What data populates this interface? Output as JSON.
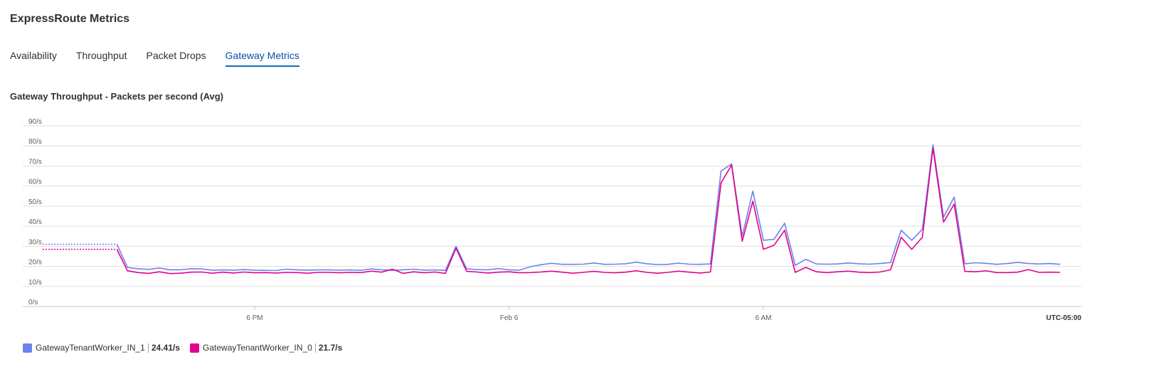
{
  "page": {
    "title": "ExpressRoute Metrics"
  },
  "tabs": [
    {
      "label": "Availability",
      "active": false
    },
    {
      "label": "Throughput",
      "active": false
    },
    {
      "label": "Packet Drops",
      "active": false
    },
    {
      "label": "Gateway Metrics",
      "active": true
    }
  ],
  "chart_title": "Gateway Throughput - Packets per second (Avg)",
  "timezone": "UTC-05:00",
  "legend": [
    {
      "name": "GatewayTenantWorker_IN_1",
      "value": "24.41/s",
      "color": "#6b83ec"
    },
    {
      "name": "GatewayTenantWorker_IN_0",
      "value": "21.7/s",
      "color": "#e3008c"
    }
  ],
  "chart_data": {
    "type": "line",
    "title": "Gateway Throughput - Packets per second (Avg)",
    "y_unit": "/s",
    "ylim": [
      0,
      90
    ],
    "yticks": [
      "0/s",
      "10/s",
      "20/s",
      "30/s",
      "40/s",
      "50/s",
      "60/s",
      "70/s",
      "80/s",
      "90/s"
    ],
    "x_range_hours": [
      13.0,
      37.5
    ],
    "xticks": [
      {
        "label": "6 PM",
        "hour": 18
      },
      {
        "label": "Feb 6",
        "hour": 24
      },
      {
        "label": "6 AM",
        "hour": 30
      }
    ],
    "grid": true,
    "legend_position": "bottom-left",
    "dotted_until_hour": 14.75,
    "series": [
      {
        "name": "GatewayTenantWorker_IN_1",
        "color": "#6b83ec",
        "points": [
          [
            13.0,
            31
          ],
          [
            14.75,
            31
          ],
          [
            15.0,
            19.5
          ],
          [
            15.25,
            18.8
          ],
          [
            15.5,
            18.5
          ],
          [
            15.75,
            19.2
          ],
          [
            16.0,
            18.3
          ],
          [
            16.25,
            18.3
          ],
          [
            16.5,
            18.8
          ],
          [
            16.75,
            18.7
          ],
          [
            17.0,
            18.1
          ],
          [
            17.25,
            18.2
          ],
          [
            17.5,
            18.1
          ],
          [
            17.75,
            18.4
          ],
          [
            18.0,
            18.1
          ],
          [
            18.25,
            18.0
          ],
          [
            18.5,
            17.9
          ],
          [
            18.75,
            18.6
          ],
          [
            19.0,
            18.2
          ],
          [
            19.25,
            18.1
          ],
          [
            19.5,
            18.2
          ],
          [
            19.75,
            18.3
          ],
          [
            20.0,
            18.1
          ],
          [
            20.25,
            18.2
          ],
          [
            20.5,
            18.0
          ],
          [
            20.75,
            18.7
          ],
          [
            21.0,
            18.3
          ],
          [
            21.25,
            18.0
          ],
          [
            21.5,
            18.3
          ],
          [
            21.75,
            18.6
          ],
          [
            22.0,
            18.1
          ],
          [
            22.25,
            18.2
          ],
          [
            22.5,
            18.0
          ],
          [
            22.75,
            30.0
          ],
          [
            23.0,
            18.8
          ],
          [
            23.25,
            18.4
          ],
          [
            23.5,
            18.3
          ],
          [
            23.75,
            18.9
          ],
          [
            24.0,
            18.3
          ],
          [
            24.25,
            18.1
          ],
          [
            24.5,
            19.8
          ],
          [
            24.75,
            20.8
          ],
          [
            25.0,
            21.5
          ],
          [
            25.25,
            21.0
          ],
          [
            25.5,
            21.0
          ],
          [
            25.75,
            21.1
          ],
          [
            26.0,
            21.7
          ],
          [
            26.25,
            21.0
          ],
          [
            26.5,
            21.1
          ],
          [
            26.75,
            21.3
          ],
          [
            27.0,
            22.1
          ],
          [
            27.25,
            21.3
          ],
          [
            27.5,
            20.9
          ],
          [
            27.75,
            21.0
          ],
          [
            28.0,
            21.6
          ],
          [
            28.25,
            21.1
          ],
          [
            28.5,
            21.0
          ],
          [
            28.75,
            21.2
          ],
          [
            29.0,
            67.5
          ],
          [
            29.25,
            71.0
          ],
          [
            29.5,
            35.0
          ],
          [
            29.75,
            57.5
          ],
          [
            30.0,
            33.0
          ],
          [
            30.25,
            33.5
          ],
          [
            30.5,
            41.5
          ],
          [
            30.75,
            20.5
          ],
          [
            31.0,
            23.5
          ],
          [
            31.25,
            21.2
          ],
          [
            31.5,
            21.1
          ],
          [
            31.75,
            21.2
          ],
          [
            32.0,
            21.7
          ],
          [
            32.25,
            21.3
          ],
          [
            32.5,
            21.1
          ],
          [
            32.75,
            21.4
          ],
          [
            33.0,
            21.9
          ],
          [
            33.25,
            38.0
          ],
          [
            33.5,
            33.0
          ],
          [
            33.75,
            38.5
          ],
          [
            34.0,
            80.5
          ],
          [
            34.25,
            44.5
          ],
          [
            34.5,
            54.5
          ],
          [
            34.75,
            21.3
          ],
          [
            35.0,
            21.8
          ],
          [
            35.25,
            21.5
          ],
          [
            35.5,
            21.0
          ],
          [
            35.75,
            21.4
          ],
          [
            36.0,
            22.0
          ],
          [
            36.25,
            21.4
          ],
          [
            36.5,
            21.2
          ],
          [
            36.75,
            21.4
          ],
          [
            37.0,
            21.0
          ]
        ]
      },
      {
        "name": "GatewayTenantWorker_IN_0",
        "color": "#e3008c",
        "points": [
          [
            13.0,
            28.5
          ],
          [
            14.75,
            28.5
          ],
          [
            15.0,
            17.8
          ],
          [
            15.25,
            16.9
          ],
          [
            15.5,
            16.5
          ],
          [
            15.75,
            17.3
          ],
          [
            16.0,
            16.4
          ],
          [
            16.25,
            16.6
          ],
          [
            16.5,
            17.1
          ],
          [
            16.75,
            17.2
          ],
          [
            17.0,
            16.6
          ],
          [
            17.25,
            17.1
          ],
          [
            17.5,
            16.7
          ],
          [
            17.75,
            17.2
          ],
          [
            18.0,
            16.8
          ],
          [
            18.25,
            16.9
          ],
          [
            18.5,
            16.7
          ],
          [
            18.75,
            17.0
          ],
          [
            19.0,
            16.9
          ],
          [
            19.25,
            16.6
          ],
          [
            19.5,
            17.0
          ],
          [
            19.75,
            17.0
          ],
          [
            20.0,
            16.8
          ],
          [
            20.25,
            17.0
          ],
          [
            20.5,
            16.9
          ],
          [
            20.75,
            17.6
          ],
          [
            21.0,
            17.1
          ],
          [
            21.25,
            18.6
          ],
          [
            21.5,
            16.5
          ],
          [
            21.75,
            17.3
          ],
          [
            22.0,
            16.8
          ],
          [
            22.25,
            17.2
          ],
          [
            22.5,
            16.5
          ],
          [
            22.75,
            29.0
          ],
          [
            23.0,
            17.5
          ],
          [
            23.25,
            17.2
          ],
          [
            23.5,
            16.7
          ],
          [
            23.75,
            17.1
          ],
          [
            24.0,
            17.3
          ],
          [
            24.25,
            16.8
          ],
          [
            24.5,
            16.9
          ],
          [
            24.75,
            17.2
          ],
          [
            25.0,
            17.6
          ],
          [
            25.25,
            17.1
          ],
          [
            25.5,
            16.6
          ],
          [
            25.75,
            17.0
          ],
          [
            26.0,
            17.5
          ],
          [
            26.25,
            17.0
          ],
          [
            26.5,
            16.8
          ],
          [
            26.75,
            17.1
          ],
          [
            27.0,
            17.8
          ],
          [
            27.25,
            17.0
          ],
          [
            27.5,
            16.6
          ],
          [
            27.75,
            17.0
          ],
          [
            28.0,
            17.6
          ],
          [
            28.25,
            17.1
          ],
          [
            28.5,
            16.7
          ],
          [
            28.75,
            17.2
          ],
          [
            29.0,
            61.5
          ],
          [
            29.25,
            70.5
          ],
          [
            29.5,
            32.5
          ],
          [
            29.75,
            52.5
          ],
          [
            30.0,
            28.5
          ],
          [
            30.25,
            30.5
          ],
          [
            30.5,
            38.0
          ],
          [
            30.75,
            17.0
          ],
          [
            31.0,
            19.5
          ],
          [
            31.25,
            17.3
          ],
          [
            31.5,
            16.9
          ],
          [
            31.75,
            17.3
          ],
          [
            32.0,
            17.6
          ],
          [
            32.25,
            17.1
          ],
          [
            32.5,
            16.9
          ],
          [
            32.75,
            17.2
          ],
          [
            33.0,
            18.3
          ],
          [
            33.25,
            34.5
          ],
          [
            33.5,
            28.5
          ],
          [
            33.75,
            34.5
          ],
          [
            34.0,
            79.0
          ],
          [
            34.25,
            42.0
          ],
          [
            34.5,
            51.0
          ],
          [
            34.75,
            17.5
          ],
          [
            35.0,
            17.3
          ],
          [
            35.25,
            17.8
          ],
          [
            35.5,
            16.9
          ],
          [
            35.75,
            16.9
          ],
          [
            36.0,
            17.1
          ],
          [
            36.25,
            18.4
          ],
          [
            36.5,
            17.0
          ],
          [
            36.75,
            17.1
          ],
          [
            37.0,
            17.0
          ]
        ]
      }
    ]
  }
}
